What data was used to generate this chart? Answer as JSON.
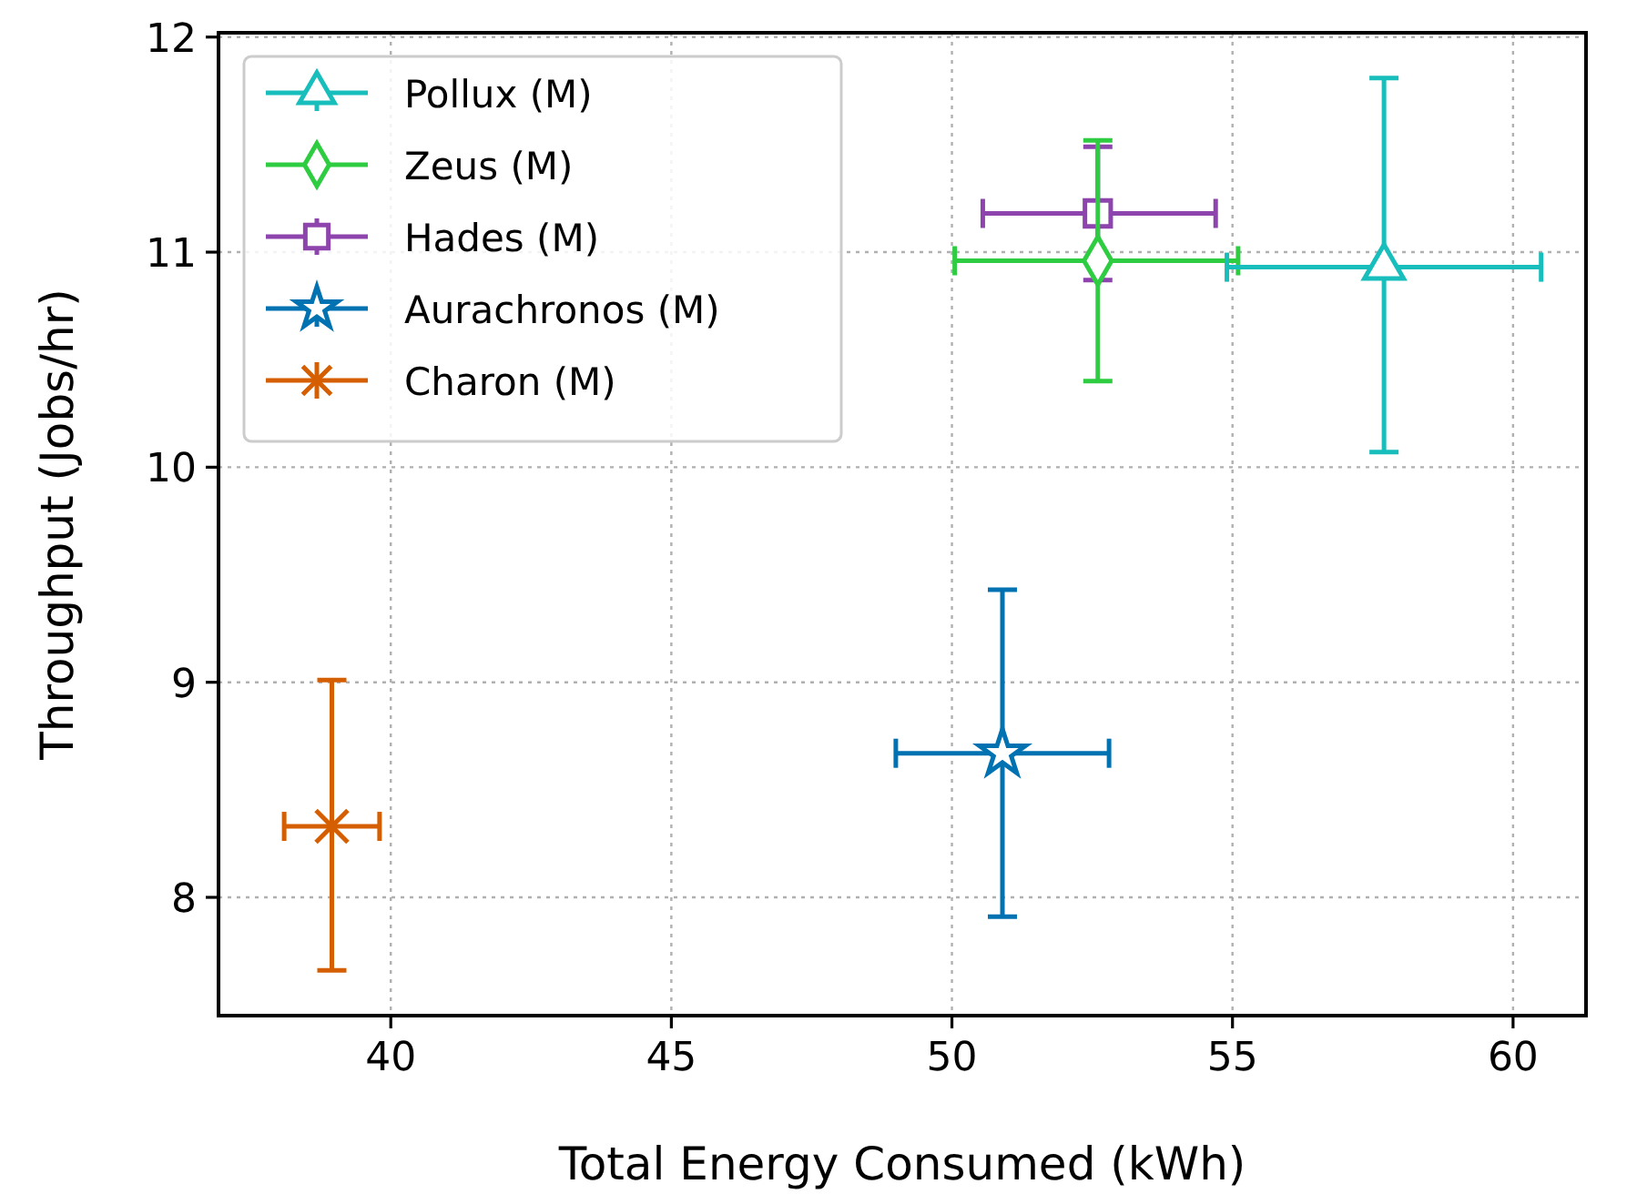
{
  "chart_data": {
    "type": "scatter",
    "xlabel": "Total Energy Consumed (kWh)",
    "ylabel": "Throughput (Jobs/hr)",
    "xlim": [
      36.93,
      61.3
    ],
    "ylim": [
      7.45,
      12.02
    ],
    "xticks": [
      40,
      45,
      50,
      55,
      60
    ],
    "yticks": [
      8,
      9,
      10,
      11,
      12
    ],
    "grid": true,
    "legend": "top left",
    "series": [
      {
        "name": "Pollux (M)",
        "color": "#17bebb",
        "marker": "triangle",
        "x": [
          57.7
        ],
        "values": [
          10.93
        ],
        "xerrors": [
          [
            54.9,
            60.5
          ]
        ],
        "errors": [
          [
            10.07,
            11.81
          ]
        ]
      },
      {
        "name": "Zeus (M)",
        "color": "#2ecc40",
        "marker": "diamond",
        "x": [
          52.6
        ],
        "values": [
          10.96
        ],
        "xerrors": [
          [
            50.05,
            55.1
          ]
        ],
        "errors": [
          [
            10.4,
            11.52
          ]
        ]
      },
      {
        "name": "Hades (M)",
        "color": "#8e44ad",
        "marker": "square",
        "x": [
          52.6
        ],
        "values": [
          11.18
        ],
        "xerrors": [
          [
            50.55,
            54.7
          ]
        ],
        "errors": [
          [
            10.87,
            11.49
          ]
        ]
      },
      {
        "name": "Aurachronos (M)",
        "color": "#0072b2",
        "marker": "star",
        "x": [
          50.9
        ],
        "values": [
          8.67
        ],
        "xerrors": [
          [
            49.0,
            52.8
          ]
        ],
        "errors": [
          [
            7.91,
            9.43
          ]
        ]
      },
      {
        "name": "Charon (M)",
        "color": "#d55e00",
        "marker": "cross",
        "x": [
          38.95
        ],
        "values": [
          8.33
        ],
        "xerrors": [
          [
            38.1,
            39.8
          ]
        ],
        "errors": [
          [
            7.66,
            9.01
          ]
        ]
      }
    ]
  }
}
